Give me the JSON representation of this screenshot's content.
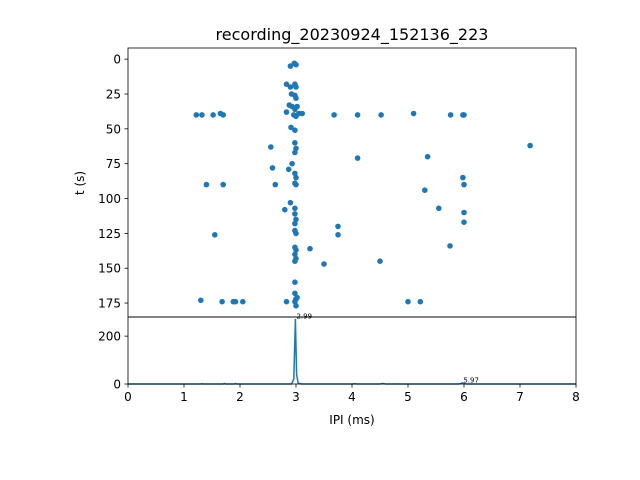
{
  "chart_data": [
    {
      "type": "scatter",
      "title": "recording_20230924_152136_223",
      "xlabel": "",
      "ylabel": "t (s)",
      "xlim": [
        0,
        8
      ],
      "ylim": [
        185,
        -8
      ],
      "y_inverted": true,
      "yticks": [
        0,
        25,
        50,
        75,
        100,
        125,
        150,
        175
      ],
      "grid": false,
      "color": "#1f77b4",
      "points": [
        [
          2.9,
          5
        ],
        [
          2.97,
          3
        ],
        [
          3.0,
          4
        ],
        [
          2.83,
          18
        ],
        [
          2.9,
          20
        ],
        [
          2.98,
          18
        ],
        [
          3.0,
          20
        ],
        [
          2.92,
          25
        ],
        [
          2.98,
          26
        ],
        [
          3.0,
          28
        ],
        [
          2.88,
          33
        ],
        [
          2.93,
          34
        ],
        [
          2.98,
          36
        ],
        [
          3.02,
          34
        ],
        [
          1.22,
          40
        ],
        [
          1.32,
          40
        ],
        [
          1.52,
          40
        ],
        [
          1.65,
          39
        ],
        [
          1.7,
          40
        ],
        [
          2.83,
          38
        ],
        [
          2.96,
          40
        ],
        [
          3.0,
          41
        ],
        [
          3.05,
          39
        ],
        [
          3.11,
          39
        ],
        [
          3.68,
          40
        ],
        [
          4.1,
          40
        ],
        [
          4.52,
          40
        ],
        [
          5.1,
          39
        ],
        [
          5.76,
          40
        ],
        [
          5.98,
          40
        ],
        [
          6.0,
          40
        ],
        [
          2.91,
          49
        ],
        [
          2.98,
          51
        ],
        [
          2.55,
          63
        ],
        [
          2.98,
          60
        ],
        [
          3.0,
          64
        ],
        [
          2.98,
          67
        ],
        [
          4.1,
          71
        ],
        [
          5.35,
          70
        ],
        [
          7.18,
          62
        ],
        [
          2.93,
          75
        ],
        [
          2.87,
          79
        ],
        [
          2.58,
          78
        ],
        [
          2.98,
          82
        ],
        [
          3.0,
          85
        ],
        [
          2.98,
          89
        ],
        [
          3.0,
          90
        ],
        [
          1.4,
          90
        ],
        [
          1.7,
          90
        ],
        [
          2.63,
          90
        ],
        [
          5.98,
          85
        ],
        [
          6.0,
          90
        ],
        [
          5.3,
          94
        ],
        [
          2.9,
          103
        ],
        [
          2.8,
          108
        ],
        [
          2.98,
          107
        ],
        [
          5.55,
          107
        ],
        [
          2.98,
          111
        ],
        [
          3.0,
          115
        ],
        [
          2.98,
          118
        ],
        [
          3.75,
          120
        ],
        [
          2.98,
          123
        ],
        [
          3.0,
          125
        ],
        [
          3.75,
          126
        ],
        [
          1.55,
          126
        ],
        [
          6.0,
          110
        ],
        [
          6.0,
          117
        ],
        [
          2.98,
          135
        ],
        [
          3.0,
          137
        ],
        [
          3.25,
          136
        ],
        [
          2.98,
          140
        ],
        [
          5.75,
          134
        ],
        [
          2.98,
          145
        ],
        [
          3.0,
          143
        ],
        [
          3.5,
          147
        ],
        [
          4.5,
          145
        ],
        [
          2.98,
          160
        ],
        [
          2.98,
          168
        ],
        [
          3.0,
          172
        ],
        [
          1.3,
          173
        ],
        [
          1.68,
          174
        ],
        [
          1.88,
          174
        ],
        [
          1.92,
          174
        ],
        [
          2.05,
          174
        ],
        [
          2.83,
          174
        ],
        [
          2.98,
          174
        ],
        [
          3.0,
          177
        ],
        [
          3.02,
          171
        ],
        [
          5.0,
          174
        ],
        [
          5.22,
          174
        ]
      ]
    },
    {
      "type": "line",
      "xlabel": "IPI (ms)",
      "ylabel": "",
      "xlim": [
        0,
        8
      ],
      "ylim": [
        0,
        280
      ],
      "xticks": [
        0,
        1,
        2,
        3,
        4,
        5,
        6,
        7,
        8
      ],
      "yticks": [
        0,
        200
      ],
      "grid": false,
      "color": "#1f77b4",
      "series": [
        {
          "x": [
            0,
            1.0,
            1.3,
            1.32,
            1.34,
            1.6,
            1.7,
            1.72,
            1.74,
            1.9,
            1.92,
            1.94,
            2.5,
            2.92,
            2.96,
            2.99,
            3.01,
            3.04,
            3.1,
            4.0,
            4.05,
            4.1,
            4.5,
            4.55,
            4.6,
            5.5,
            5.9,
            5.95,
            5.97,
            6.0,
            6.05,
            6.5,
            8.0
          ],
          "y": [
            0,
            0,
            0,
            1,
            0,
            0,
            0,
            2,
            0,
            0,
            2,
            0,
            0,
            0,
            20,
            272,
            40,
            3,
            0,
            0,
            1,
            0,
            0,
            2,
            0,
            0,
            0,
            2,
            5,
            2,
            0,
            0,
            0
          ]
        }
      ],
      "annotations": [
        {
          "x": 2.99,
          "y": 272,
          "text": "2.99"
        },
        {
          "x": 5.97,
          "y": 5,
          "text": "5.97"
        }
      ]
    }
  ]
}
